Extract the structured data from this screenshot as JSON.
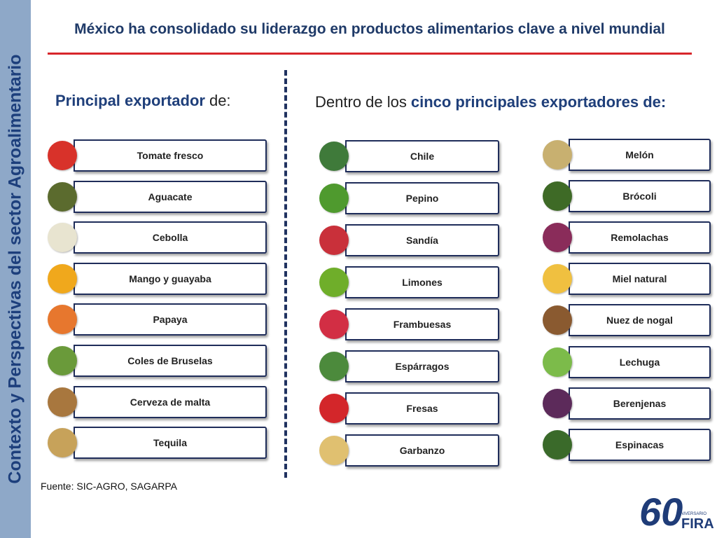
{
  "sidebar": "Contexto y Perspectivas del sector Agroalimentario",
  "title": "México ha consolidado su liderazgo en productos alimentarios clave a nivel mundial",
  "left": {
    "heading": [
      "Principal exportador",
      "de:"
    ],
    "items": [
      "Tomate fresco",
      "Aguacate",
      "Cebolla",
      "Mango y guayaba",
      "Papaya",
      "Coles de Bruselas",
      "Cerveza de malta",
      "Tequila"
    ]
  },
  "right": {
    "heading": [
      "Dentro de los",
      "cinco principales exportadores de:"
    ],
    "columns": [
      [
        "Chile",
        "Pepino",
        "Sandía",
        "Limones",
        "Frambuesas",
        "Espárragos",
        "Fresas",
        "Garbanzo"
      ],
      [
        "Melón",
        "Brócoli",
        "Remolachas",
        "Miel natural",
        "Nuez de nogal",
        "Lechuga",
        "Berenjenas",
        "Espinacas"
      ]
    ]
  },
  "source": "Fuente: SIC-AGRO, SAGARPA",
  "logo": {
    "number": "60",
    "caption": "ANIVERSARIO",
    "brand": "FIRA"
  }
}
